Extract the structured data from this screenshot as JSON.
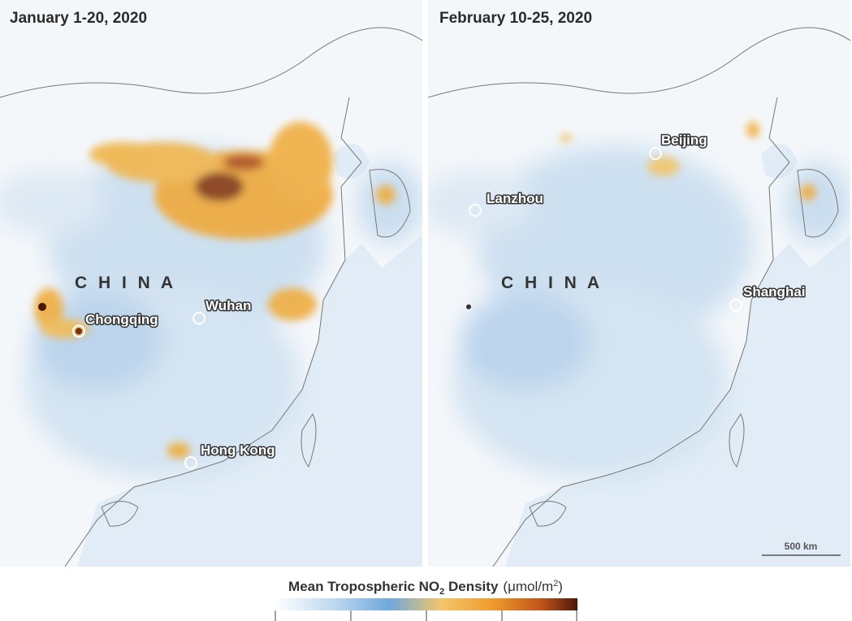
{
  "panels": [
    {
      "title": "January 1-20, 2020",
      "country_label": "C H I N A",
      "cities": [
        "Chongqing",
        "Wuhan",
        "Hong Kong"
      ]
    },
    {
      "title": "February 10-25, 2020",
      "country_label": "C H I N A",
      "cities": [
        "Beijing",
        "Lanzhou",
        "Shanghai"
      ]
    }
  ],
  "scale_bar": "500 km",
  "legend": {
    "title_parts": [
      "Mean Tropospheric NO",
      "2",
      " Density"
    ],
    "unit_parts": [
      "(μmol/m",
      "2",
      ")"
    ]
  }
}
